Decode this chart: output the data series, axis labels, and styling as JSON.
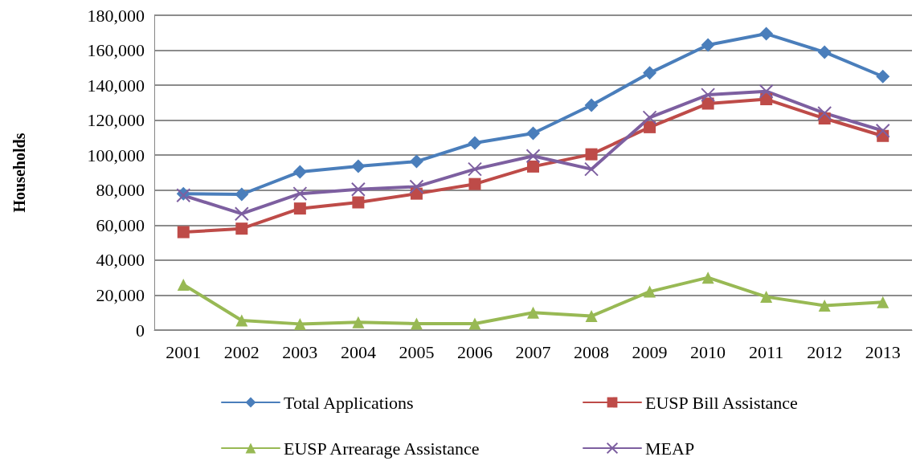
{
  "chart_data": {
    "type": "line",
    "ylabel": "Households",
    "categories": [
      "2001",
      "2002",
      "2003",
      "2004",
      "2005",
      "2006",
      "2007",
      "2008",
      "2009",
      "2010",
      "2011",
      "2012",
      "2013"
    ],
    "series": [
      {
        "name": "Total Applications",
        "color": "#4a7ebb",
        "marker": "diamond",
        "values": [
          78000,
          77600,
          90500,
          93700,
          96400,
          107000,
          112500,
          128600,
          147000,
          163000,
          169400,
          158900,
          145000
        ]
      },
      {
        "name": "EUSP Bill Assistance",
        "color": "#be4b48",
        "marker": "square",
        "values": [
          56000,
          58000,
          69500,
          73000,
          78000,
          83500,
          93500,
          100500,
          116000,
          129500,
          132000,
          121000,
          111000
        ]
      },
      {
        "name": "EUSP Arrearage Assistance",
        "color": "#98b954",
        "marker": "triangle",
        "values": [
          26000,
          5500,
          3500,
          4500,
          3700,
          3700,
          10000,
          8000,
          22000,
          30000,
          19000,
          14000,
          16000
        ]
      },
      {
        "name": "MEAP",
        "color": "#7d5fa0",
        "marker": "cross",
        "values": [
          77000,
          66500,
          78000,
          80500,
          82000,
          92000,
          99500,
          92000,
          121500,
          134500,
          136500,
          124000,
          114000
        ]
      }
    ],
    "ylim": [
      0,
      180000
    ],
    "yticks": [
      0,
      {
        "value": 20000,
        "label": "20,000"
      },
      {
        "value": 40000,
        "label": "40,000"
      },
      {
        "value": 60000,
        "label": "60,000"
      },
      {
        "value": 80000,
        "label": "80,000"
      },
      {
        "value": 100000,
        "label": "100,000"
      },
      {
        "value": 120000,
        "label": "120,000"
      },
      {
        "value": 140000,
        "label": "140,000"
      },
      {
        "value": 160000,
        "label": "160,000"
      },
      {
        "value": 180000,
        "label": "180,000"
      }
    ],
    "grid": "y",
    "legend": "bottom",
    "line_style": "solid"
  }
}
